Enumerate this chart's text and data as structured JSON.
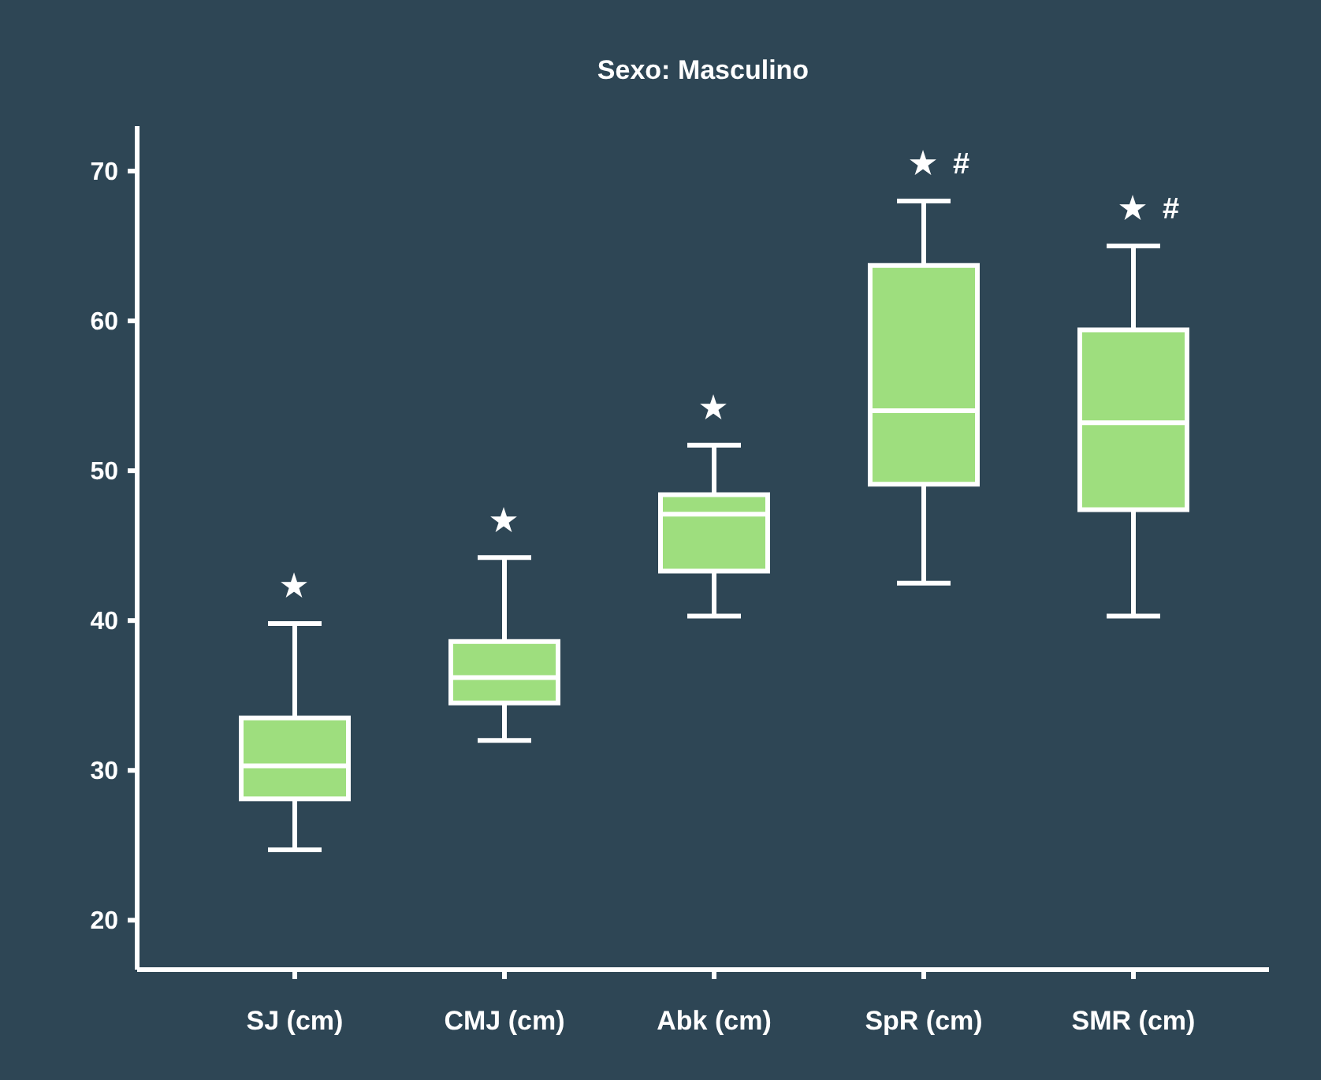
{
  "chart_data": {
    "type": "box",
    "title": "Sexo: Masculino",
    "categories": [
      "SJ (cm)",
      "CMJ (cm)",
      "Abk (cm)",
      "SpR (cm)",
      "SMR (cm)"
    ],
    "color": "#9ede7e",
    "boxes": [
      {
        "low": 24.7,
        "q1": 28.1,
        "median": 30.3,
        "q3": 33.5,
        "high": 39.8
      },
      {
        "low": 32.0,
        "q1": 34.5,
        "median": 36.2,
        "q3": 38.6,
        "high": 44.2
      },
      {
        "low": 40.3,
        "q1": 43.3,
        "median": 47.1,
        "q3": 48.4,
        "high": 51.7
      },
      {
        "low": 42.5,
        "q1": 49.1,
        "median": 54.0,
        "q3": 63.7,
        "high": 68.0
      },
      {
        "low": 40.3,
        "q1": 47.4,
        "median": 53.2,
        "q3": 59.4,
        "high": 65.0
      }
    ],
    "ylim": [
      16.7,
      73
    ],
    "yticks": [
      20,
      30,
      40,
      50,
      60,
      70
    ],
    "annotations": [
      "★",
      "★",
      "★",
      "★  #",
      "★  #"
    ]
  }
}
